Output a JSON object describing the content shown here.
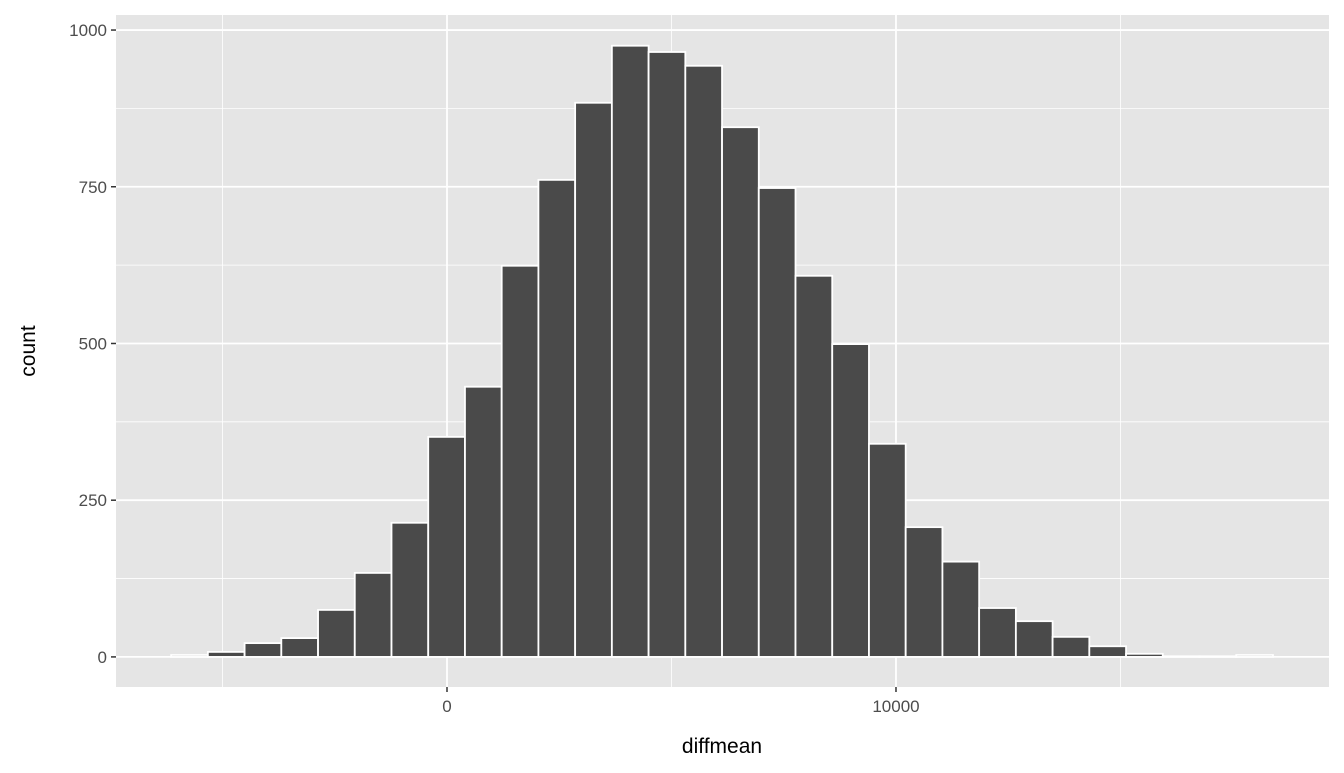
{
  "chart_data": {
    "type": "bar",
    "subtype": "histogram",
    "xlabel": "diffmean",
    "ylabel": "count",
    "xlim": [
      -7372,
      19644
    ],
    "ylim": [
      -48,
      1024
    ],
    "x_major_ticks": [
      0,
      10000
    ],
    "x_tick_labels": [
      "0",
      "10000"
    ],
    "x_minor_gridlines": [
      -5000,
      5000,
      15000
    ],
    "y_major_ticks": [
      0,
      250,
      500,
      750,
      1000
    ],
    "y_tick_labels": [
      "0",
      "250",
      "500",
      "750",
      "1000"
    ],
    "y_minor_gridlines": [
      125,
      375,
      625,
      875
    ],
    "grid": true,
    "bin_width": 818,
    "x": [
      -5735,
      -4917,
      -4099,
      -3281,
      -2463,
      -1645,
      -827,
      -9,
      809,
      1627,
      2445,
      3263,
      4081,
      4899,
      5717,
      6535,
      7353,
      8171,
      8989,
      9807,
      10625,
      11443,
      12261,
      13079,
      13897,
      14715,
      15533,
      16351,
      17169,
      17987
    ],
    "values": [
      3,
      8,
      22,
      30,
      75,
      134,
      214,
      351,
      431,
      624,
      761,
      884,
      975,
      965,
      943,
      845,
      748,
      608,
      499,
      340,
      207,
      152,
      78,
      57,
      32,
      17,
      5,
      1,
      1,
      3
    ],
    "colors": {
      "bar_fill": "#4a4a4a",
      "bar_outline": "#ffffff",
      "panel": "#e5e5e5",
      "grid": "#ffffff"
    }
  }
}
